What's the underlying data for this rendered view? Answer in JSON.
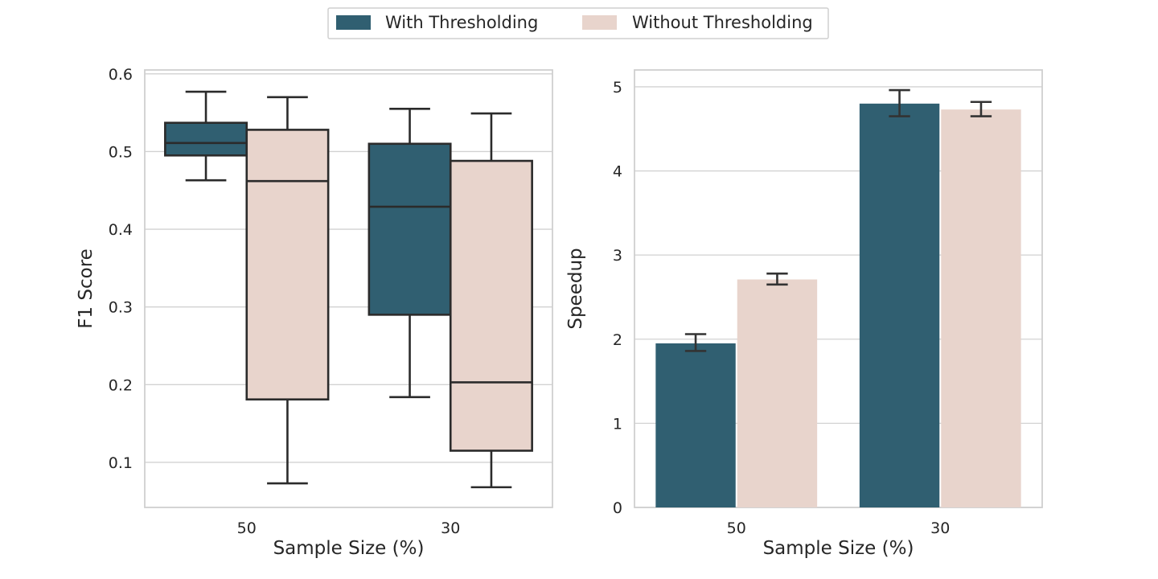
{
  "colors": {
    "with": "#305f71",
    "without": "#e8d4cc",
    "box_edge": "#2b2b2b",
    "grid": "#d2d2d2",
    "frame": "#cfcfcf"
  },
  "legend": {
    "items": [
      {
        "label": "With Thresholding",
        "color_key": "with"
      },
      {
        "label": "Without Thresholding",
        "color_key": "without"
      }
    ],
    "placement": "top-center"
  },
  "chart_data": [
    {
      "type": "box",
      "xlabel": "Sample Size (%)",
      "ylabel": "F1 Score",
      "categories": [
        "50",
        "30"
      ],
      "ylim": [
        0.042,
        0.605
      ],
      "yticks": [
        0.1,
        0.2,
        0.3,
        0.4,
        0.5,
        0.6
      ],
      "ytick_labels": [
        "0.1",
        "0.2",
        "0.3",
        "0.4",
        "0.5",
        "0.6"
      ],
      "grid": true,
      "series": [
        {
          "name": "With Thresholding",
          "color_key": "with",
          "boxes": [
            {
              "min": 0.463,
              "q1": 0.495,
              "median": 0.511,
              "q3": 0.537,
              "max": 0.577
            },
            {
              "min": 0.184,
              "q1": 0.29,
              "median": 0.429,
              "q3": 0.51,
              "max": 0.555
            }
          ]
        },
        {
          "name": "Without Thresholding",
          "color_key": "without",
          "boxes": [
            {
              "min": 0.073,
              "q1": 0.181,
              "median": 0.462,
              "q3": 0.528,
              "max": 0.57
            },
            {
              "min": 0.068,
              "q1": 0.115,
              "median": 0.203,
              "q3": 0.488,
              "max": 0.549
            }
          ]
        }
      ]
    },
    {
      "type": "bar",
      "xlabel": "Sample Size (%)",
      "ylabel": "Speedup",
      "categories": [
        "50",
        "30"
      ],
      "ylim": [
        0,
        5.2
      ],
      "yticks": [
        0,
        1,
        2,
        3,
        4,
        5
      ],
      "ytick_labels": [
        "0",
        "1",
        "2",
        "3",
        "4",
        "5"
      ],
      "grid": true,
      "series": [
        {
          "name": "With Thresholding",
          "color_key": "with",
          "values": [
            1.95,
            4.8
          ],
          "error_low": [
            1.86,
            4.65
          ],
          "error_high": [
            2.06,
            4.96
          ]
        },
        {
          "name": "Without Thresholding",
          "color_key": "without",
          "values": [
            2.71,
            4.73
          ],
          "error_low": [
            2.65,
            4.65
          ],
          "error_high": [
            2.78,
            4.82
          ]
        }
      ]
    }
  ]
}
